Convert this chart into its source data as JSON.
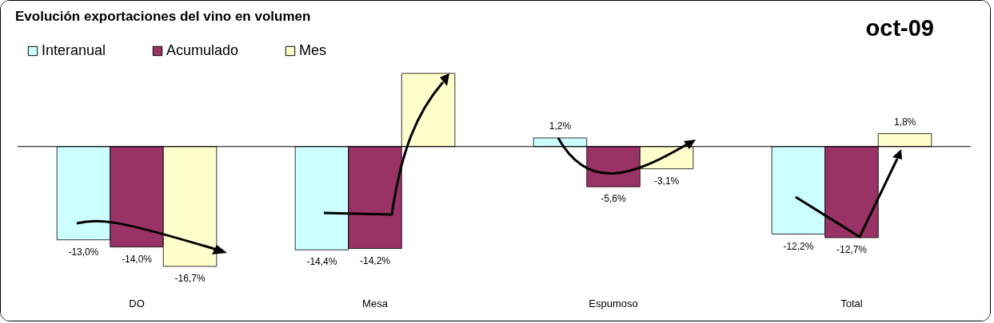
{
  "chart_data": {
    "type": "bar",
    "title": "Evolución exportaciones del vino en volumen",
    "subtitle": "oct-09",
    "categories": [
      "DO",
      "Mesa",
      "Espumoso",
      "Total"
    ],
    "series": [
      {
        "name": "Interanual",
        "color": "#ccffff",
        "values": [
          -13.0,
          -14.4,
          1.2,
          -12.2
        ],
        "value_labels": [
          "-13,0%",
          "-14,4%",
          "1,2%",
          "-12,2%"
        ]
      },
      {
        "name": "Acumulado",
        "color": "#993366",
        "values": [
          -14.0,
          -14.2,
          -5.6,
          -12.7
        ],
        "value_labels": [
          "-14,0%",
          "-14,2%",
          "-5,6%",
          "-12,7%"
        ]
      },
      {
        "name": "Mes",
        "color": "#ffffcc",
        "values": [
          -16.7,
          10.2,
          -3.1,
          1.8
        ],
        "value_labels": [
          "-16,7%",
          null,
          "-3,1%",
          "1,8%"
        ]
      }
    ],
    "legend": "top left"
  }
}
